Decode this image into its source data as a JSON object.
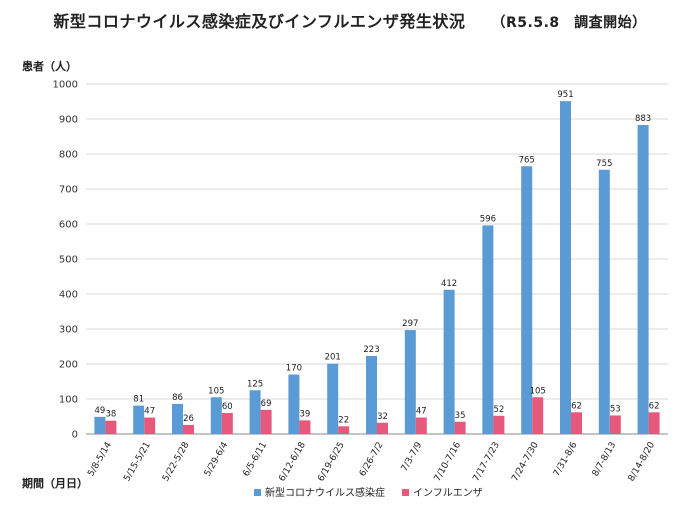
{
  "chart_data": {
    "type": "bar",
    "title": "新型コロナウイルス感染症及びインフルエンザ発生状況",
    "subtitle": "（R5.5.8　調査開始）",
    "ylabel": "患者（人）",
    "xlabel": "期間（月日）",
    "ylim": [
      0,
      1000
    ],
    "yticks": [
      0,
      100,
      200,
      300,
      400,
      500,
      600,
      700,
      800,
      900,
      1000
    ],
    "categories": [
      "5/8-5/14",
      "5/15-5/21",
      "5/22-5/28",
      "5/29-6/4",
      "6/5-6/11",
      "6/12-6/18",
      "6/19-6/25",
      "6/26-7/2",
      "7/3-7/9",
      "7/10-7/16",
      "7/17-7/23",
      "7/24-7/30",
      "7/31-8/6",
      "8/7-8/13",
      "8/14-8/20"
    ],
    "series": [
      {
        "name": "新型コロナウイルス感染症",
        "color": "#5b9bd5",
        "values": [
          49,
          81,
          86,
          105,
          125,
          170,
          201,
          223,
          297,
          412,
          596,
          765,
          951,
          755,
          883
        ]
      },
      {
        "name": "インフルエンザ",
        "color": "#e7587d",
        "values": [
          38,
          47,
          26,
          60,
          69,
          39,
          22,
          32,
          47,
          35,
          52,
          105,
          62,
          53,
          62
        ]
      }
    ],
    "grid": true,
    "legend": "bottom"
  }
}
